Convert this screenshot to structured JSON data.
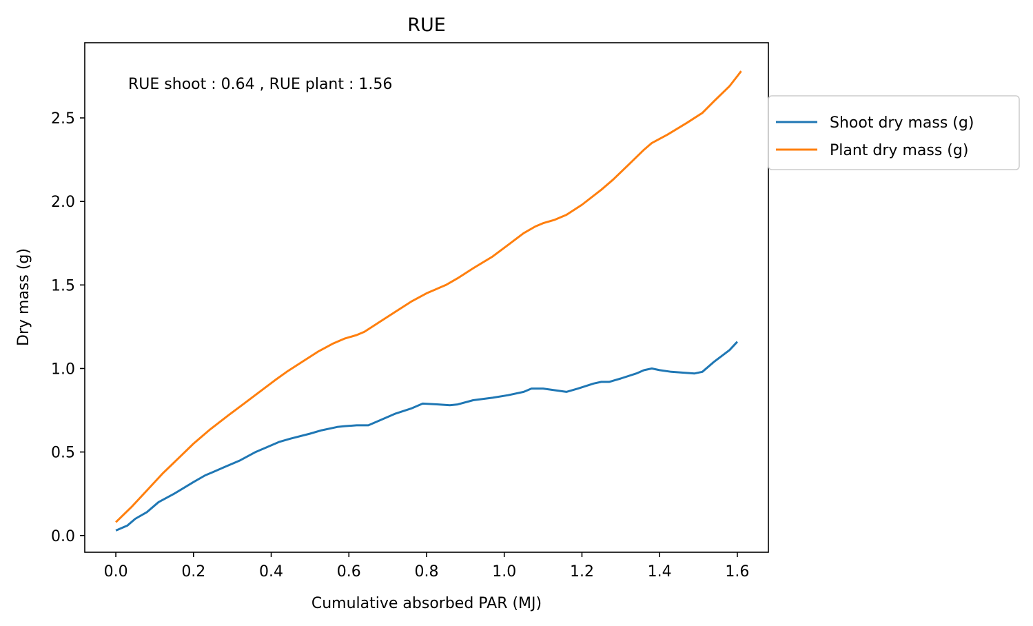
{
  "chart_data": {
    "type": "line",
    "title": "RUE",
    "xlabel": "Cumulative absorbed PAR (MJ)",
    "ylabel": "Dry mass (g)",
    "xlim": [
      -0.08,
      1.68
    ],
    "ylim": [
      -0.1,
      2.95
    ],
    "xticks": [
      0.0,
      0.2,
      0.4,
      0.6,
      0.8,
      1.0,
      1.2,
      1.4,
      1.6
    ],
    "xtick_labels": [
      "0.0",
      "0.2",
      "0.4",
      "0.6",
      "0.8",
      "1.0",
      "1.2",
      "1.4",
      "1.6"
    ],
    "yticks": [
      0.0,
      0.5,
      1.0,
      1.5,
      2.0,
      2.5
    ],
    "ytick_labels": [
      "0.0",
      "0.5",
      "1.0",
      "1.5",
      "2.0",
      "2.5"
    ],
    "annotation": "RUE shoot : 0.64 , RUE plant : 1.56",
    "legend_position": "outside-right-top",
    "grid": false,
    "series": [
      {
        "name": "Shoot dry mass (g)",
        "color": "#1f77b4",
        "x": [
          0.0,
          0.03,
          0.05,
          0.08,
          0.11,
          0.15,
          0.2,
          0.23,
          0.25,
          0.28,
          0.32,
          0.36,
          0.39,
          0.42,
          0.45,
          0.5,
          0.53,
          0.57,
          0.59,
          0.62,
          0.65,
          0.68,
          0.72,
          0.76,
          0.79,
          0.83,
          0.86,
          0.88,
          0.92,
          0.97,
          1.01,
          1.05,
          1.07,
          1.1,
          1.13,
          1.16,
          1.19,
          1.23,
          1.25,
          1.27,
          1.3,
          1.34,
          1.36,
          1.38,
          1.4,
          1.43,
          1.46,
          1.49,
          1.51,
          1.54,
          1.58,
          1.6
        ],
        "values": [
          0.03,
          0.06,
          0.1,
          0.14,
          0.2,
          0.25,
          0.32,
          0.36,
          0.38,
          0.41,
          0.45,
          0.5,
          0.53,
          0.56,
          0.58,
          0.61,
          0.63,
          0.65,
          0.655,
          0.66,
          0.66,
          0.69,
          0.73,
          0.76,
          0.79,
          0.785,
          0.78,
          0.785,
          0.81,
          0.825,
          0.84,
          0.86,
          0.88,
          0.88,
          0.87,
          0.86,
          0.88,
          0.91,
          0.92,
          0.92,
          0.94,
          0.97,
          0.99,
          1.0,
          0.99,
          0.98,
          0.975,
          0.97,
          0.98,
          1.04,
          1.11,
          1.16
        ]
      },
      {
        "name": "Plant dry mass (g)",
        "color": "#ff7f0e",
        "x": [
          0.0,
          0.04,
          0.08,
          0.12,
          0.16,
          0.2,
          0.24,
          0.29,
          0.33,
          0.37,
          0.41,
          0.44,
          0.48,
          0.52,
          0.56,
          0.59,
          0.62,
          0.64,
          0.68,
          0.72,
          0.76,
          0.8,
          0.85,
          0.88,
          0.92,
          0.97,
          1.01,
          1.05,
          1.08,
          1.1,
          1.13,
          1.16,
          1.2,
          1.25,
          1.28,
          1.32,
          1.36,
          1.38,
          1.42,
          1.47,
          1.51,
          1.54,
          1.58,
          1.6,
          1.61
        ],
        "values": [
          0.08,
          0.17,
          0.27,
          0.37,
          0.46,
          0.55,
          0.63,
          0.72,
          0.79,
          0.86,
          0.93,
          0.98,
          1.04,
          1.1,
          1.15,
          1.18,
          1.2,
          1.22,
          1.28,
          1.34,
          1.4,
          1.45,
          1.5,
          1.54,
          1.6,
          1.67,
          1.74,
          1.81,
          1.85,
          1.87,
          1.89,
          1.92,
          1.98,
          2.07,
          2.13,
          2.22,
          2.31,
          2.35,
          2.4,
          2.47,
          2.53,
          2.6,
          2.69,
          2.75,
          2.78
        ]
      }
    ]
  }
}
